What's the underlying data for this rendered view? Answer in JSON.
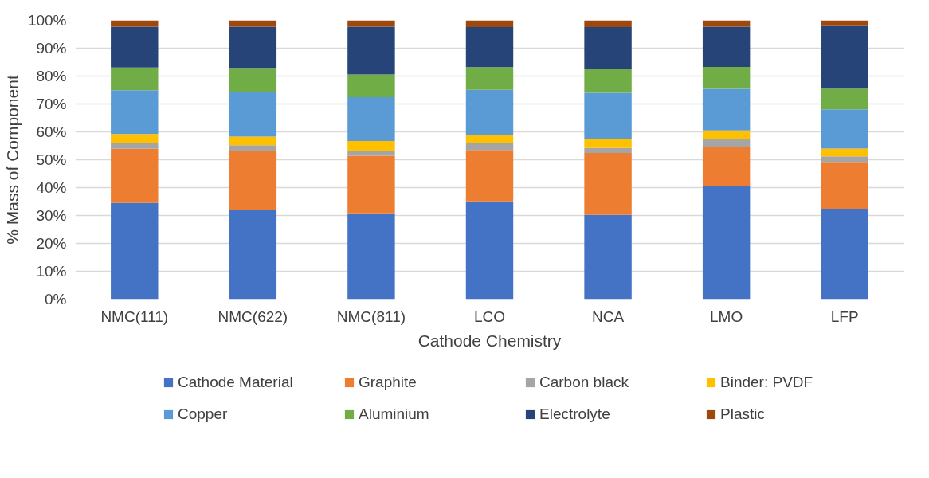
{
  "chart_data": {
    "type": "bar",
    "stacked": true,
    "xlabel": "Cathode Chemistry",
    "ylabel": "% Mass of Component",
    "categories": [
      "NMC(111)",
      "NMC(622)",
      "NMC(811)",
      "LCO",
      "NCA",
      "LMO",
      "LFP"
    ],
    "series": [
      {
        "name": "Cathode Material",
        "color": "#4472c4",
        "values": [
          34.5,
          32.1,
          30.8,
          35.1,
          30.2,
          40.5,
          32.4
        ]
      },
      {
        "name": "Graphite",
        "color": "#ed7d31",
        "values": [
          19.4,
          21.2,
          20.6,
          18.4,
          22.2,
          14.2,
          16.8
        ]
      },
      {
        "name": "Carbon black",
        "color": "#a5a5a5",
        "values": [
          2.1,
          1.9,
          1.8,
          2.5,
          1.8,
          2.6,
          2.0
        ]
      },
      {
        "name": "Binder: PVDF",
        "color": "#ffc000",
        "values": [
          3.2,
          3.1,
          3.5,
          2.9,
          3.1,
          3.2,
          2.8
        ]
      },
      {
        "name": "Copper",
        "color": "#5b9bd5",
        "values": [
          15.7,
          16.1,
          15.7,
          16.2,
          16.7,
          14.9,
          14.1
        ]
      },
      {
        "name": "Aluminium",
        "color": "#70ad47",
        "values": [
          8.2,
          8.5,
          8.2,
          8.1,
          8.5,
          7.9,
          7.4
        ]
      },
      {
        "name": "Electrolyte",
        "color": "#264478",
        "values": [
          14.6,
          14.8,
          17.1,
          14.4,
          15.1,
          14.4,
          22.4
        ]
      },
      {
        "name": "Plastic",
        "color": "#9e480e",
        "values": [
          2.3,
          2.3,
          2.3,
          2.4,
          2.4,
          2.3,
          2.1
        ]
      }
    ],
    "ylim": [
      0,
      100
    ],
    "yticks": [
      {
        "value": 0,
        "label": "0%"
      },
      {
        "value": 10,
        "label": "10%"
      },
      {
        "value": 20,
        "label": "20%"
      },
      {
        "value": 30,
        "label": "30%"
      },
      {
        "value": 40,
        "label": "40%"
      },
      {
        "value": 50,
        "label": "50%"
      },
      {
        "value": 60,
        "label": "60%"
      },
      {
        "value": 70,
        "label": "70%"
      },
      {
        "value": 80,
        "label": "80%"
      },
      {
        "value": 90,
        "label": "90%"
      },
      {
        "value": 100,
        "label": "100%"
      }
    ],
    "grid": "y",
    "legend": "bottom"
  }
}
